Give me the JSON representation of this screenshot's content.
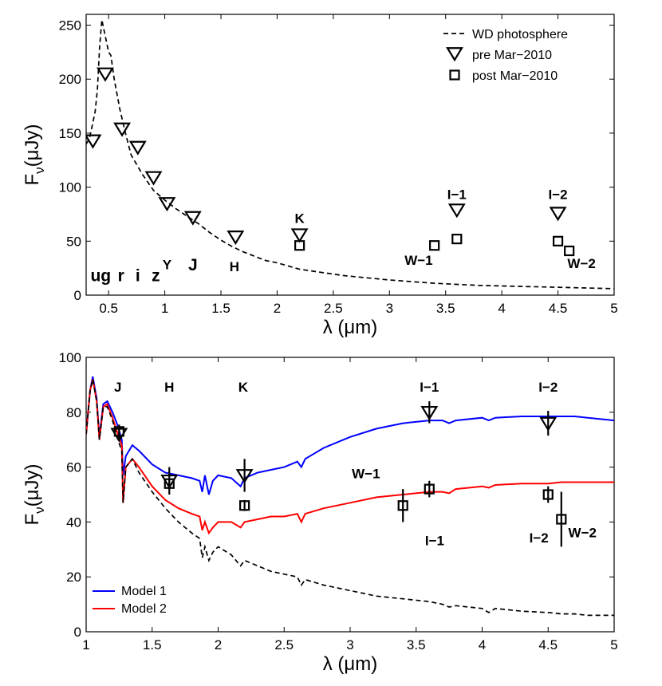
{
  "chart_data": [
    {
      "type": "scatter",
      "panel": "top",
      "xlabel": "λ (μm)",
      "ylabel_main": "F",
      "ylabel_sub": "ν",
      "ylabel_unit": "(μJy)",
      "xlim": [
        0.3,
        5
      ],
      "ylim": [
        0,
        260
      ],
      "xticks": [
        0.5,
        1,
        1.5,
        2,
        2.5,
        3,
        3.5,
        4,
        4.5,
        5
      ],
      "xticklabels": [
        "0.5",
        "1",
        "1.5",
        "2",
        "2.5",
        "3",
        "3.5",
        "4",
        "4.5",
        "5"
      ],
      "yticks": [
        0,
        50,
        100,
        150,
        200,
        250
      ],
      "yticklabels": [
        "0",
        "50",
        "100",
        "150",
        "200",
        "250"
      ],
      "legend": {
        "placement": "top-right",
        "entries": [
          {
            "label": "WD photosphere",
            "style": "dashed-line"
          },
          {
            "label": "pre Mar−2010",
            "marker": "triangle-down"
          },
          {
            "label": "post Mar−2010",
            "marker": "square"
          }
        ]
      },
      "series": [
        {
          "name": "WD photosphere",
          "style": "dashed",
          "x": [
            0.3,
            0.33,
            0.36,
            0.38,
            0.4,
            0.42,
            0.44,
            0.46,
            0.48,
            0.5,
            0.52,
            0.55,
            0.6,
            0.65,
            0.7,
            0.8,
            0.9,
            1.0,
            1.1,
            1.2,
            1.3,
            1.4,
            1.5,
            1.6,
            1.7,
            1.8,
            1.9,
            2.0,
            2.2,
            2.4,
            2.6,
            2.8,
            3.0,
            3.2,
            3.4,
            3.6,
            3.8,
            4.0,
            4.2,
            4.4,
            4.6,
            4.8,
            5.0
          ],
          "y": [
            140,
            145,
            160,
            170,
            190,
            230,
            255,
            245,
            235,
            225,
            222,
            200,
            172,
            150,
            130,
            112,
            97,
            88,
            80,
            73,
            66,
            58,
            51,
            45,
            40,
            36,
            32,
            30,
            24,
            21,
            18,
            16,
            14,
            12.5,
            11,
            10,
            9,
            8.5,
            8,
            7.5,
            7,
            6.5,
            6
          ]
        },
        {
          "name": "pre Mar−2010",
          "marker": "triangle-down",
          "x": [
            0.36,
            0.47,
            0.62,
            0.76,
            0.9,
            1.02,
            1.25,
            1.63,
            2.2,
            3.6,
            4.5
          ],
          "y": [
            143,
            205,
            154,
            137,
            109,
            85,
            72,
            54,
            56,
            79,
            76
          ]
        },
        {
          "name": "post Mar−2010",
          "marker": "square",
          "x": [
            2.2,
            3.4,
            3.6,
            4.5,
            4.6
          ],
          "y": [
            46,
            46,
            52,
            50,
            41
          ]
        }
      ],
      "annotations": [
        {
          "text": "ug",
          "x": 0.43,
          "y": 13,
          "size": "big"
        },
        {
          "text": "r",
          "x": 0.61,
          "y": 13,
          "size": "big"
        },
        {
          "text": "i",
          "x": 0.76,
          "y": 13,
          "size": "big"
        },
        {
          "text": "z",
          "x": 0.92,
          "y": 13,
          "size": "big"
        },
        {
          "text": "Y",
          "x": 1.02,
          "y": 24,
          "size": "small"
        },
        {
          "text": "J",
          "x": 1.25,
          "y": 23,
          "size": "big"
        },
        {
          "text": "H",
          "x": 1.62,
          "y": 22,
          "size": "small"
        },
        {
          "text": "K",
          "x": 2.2,
          "y": 67,
          "size": "small"
        },
        {
          "text": "W−1",
          "x": 3.26,
          "y": 28,
          "size": "small"
        },
        {
          "text": "I−1",
          "x": 3.6,
          "y": 89,
          "size": "small"
        },
        {
          "text": "I−2",
          "x": 4.5,
          "y": 89,
          "size": "small"
        },
        {
          "text": "W−2",
          "x": 4.71,
          "y": 25,
          "size": "small"
        }
      ]
    },
    {
      "type": "line",
      "panel": "bottom",
      "xlabel": "λ (μm)",
      "ylabel_main": "F",
      "ylabel_sub": "ν",
      "ylabel_unit": "(μJy)",
      "xlim": [
        1,
        5
      ],
      "ylim": [
        0,
        100
      ],
      "xticks": [
        1,
        1.5,
        2,
        2.5,
        3,
        3.5,
        4,
        4.5,
        5
      ],
      "xticklabels": [
        "1",
        "1.5",
        "2",
        "2.5",
        "3",
        "3.5",
        "4",
        "4.5",
        "5"
      ],
      "yticks": [
        0,
        20,
        40,
        60,
        80,
        100
      ],
      "yticklabels": [
        "0",
        "20",
        "40",
        "60",
        "80",
        "100"
      ],
      "legend": {
        "placement": "bottom-left",
        "entries": [
          {
            "label": "Model 1",
            "color": "#0000ff"
          },
          {
            "label": "Model 2",
            "color": "#ff0000"
          }
        ]
      },
      "series": [
        {
          "name": "Model 1",
          "color": "#0000ff",
          "style": "solid",
          "x": [
            1.0,
            1.03,
            1.05,
            1.08,
            1.1,
            1.13,
            1.16,
            1.2,
            1.24,
            1.27,
            1.28,
            1.3,
            1.35,
            1.4,
            1.5,
            1.6,
            1.7,
            1.8,
            1.86,
            1.88,
            1.9,
            1.93,
            1.96,
            2.0,
            2.1,
            2.17,
            2.2,
            2.3,
            2.4,
            2.5,
            2.6,
            2.63,
            2.66,
            2.8,
            3.0,
            3.2,
            3.4,
            3.6,
            3.7,
            3.75,
            3.8,
            4.0,
            4.05,
            4.1,
            4.3,
            4.5,
            4.6,
            4.7,
            4.8,
            5.0
          ],
          "y": [
            72,
            88,
            93,
            85,
            71,
            83,
            84,
            80,
            75,
            70,
            57,
            64,
            68,
            66,
            61,
            58,
            57,
            56,
            55,
            51,
            57,
            50,
            55,
            57,
            56,
            53,
            56,
            58,
            59,
            60,
            62,
            60,
            63,
            67,
            71,
            74,
            76,
            77,
            77,
            76,
            77,
            78,
            77,
            78,
            78.5,
            78.5,
            78.5,
            78.5,
            78,
            77
          ]
        },
        {
          "name": "Model 2",
          "color": "#ff0000",
          "style": "solid",
          "x": [
            1.0,
            1.03,
            1.05,
            1.08,
            1.1,
            1.13,
            1.16,
            1.2,
            1.24,
            1.27,
            1.28,
            1.3,
            1.35,
            1.4,
            1.5,
            1.6,
            1.7,
            1.8,
            1.86,
            1.88,
            1.9,
            1.93,
            1.96,
            2.0,
            2.1,
            2.17,
            2.2,
            2.3,
            2.4,
            2.5,
            2.6,
            2.63,
            2.66,
            2.8,
            3.0,
            3.2,
            3.4,
            3.6,
            3.7,
            3.75,
            3.8,
            4.0,
            4.05,
            4.1,
            4.3,
            4.5,
            4.6,
            4.7,
            4.8,
            5.0
          ],
          "y": [
            72,
            88,
            92,
            84,
            70,
            82,
            83,
            78,
            72,
            68,
            47,
            60,
            63,
            60,
            53,
            48,
            45,
            43,
            42,
            37,
            40,
            36,
            38,
            40,
            40,
            38,
            40,
            41,
            42,
            42,
            43,
            40,
            43,
            45,
            47,
            49,
            50,
            51,
            51,
            50.5,
            52,
            53,
            52.5,
            53.5,
            54,
            54,
            54.5,
            54.5,
            54.5,
            54.5
          ]
        },
        {
          "name": "WD photosphere",
          "color": "#000000",
          "style": "dashed",
          "x": [
            1.0,
            1.03,
            1.05,
            1.08,
            1.1,
            1.13,
            1.16,
            1.2,
            1.24,
            1.27,
            1.28,
            1.3,
            1.35,
            1.4,
            1.5,
            1.6,
            1.7,
            1.8,
            1.86,
            1.88,
            1.9,
            1.93,
            1.96,
            2.0,
            2.1,
            2.17,
            2.2,
            2.3,
            2.4,
            2.5,
            2.6,
            2.63,
            2.66,
            2.8,
            3.0,
            3.2,
            3.4,
            3.6,
            3.7,
            3.75,
            3.8,
            4.0,
            4.05,
            4.1,
            4.3,
            4.5,
            4.6,
            4.7,
            4.8,
            5.0
          ],
          "y": [
            72,
            88,
            92,
            84,
            70,
            82,
            82,
            77,
            70,
            66,
            47,
            60,
            63,
            58,
            51,
            45,
            40,
            36,
            34,
            27,
            31,
            26,
            29,
            31,
            28,
            24,
            26,
            24,
            22,
            21,
            20,
            17,
            19,
            17,
            15,
            13,
            12,
            11,
            10,
            9,
            9.5,
            8.5,
            7,
            8.5,
            7.5,
            7,
            6.5,
            6.5,
            6,
            6
          ]
        },
        {
          "name": "pre Mar−2010",
          "marker": "triangle-down",
          "x": [
            1.25,
            1.63,
            2.2,
            3.6,
            4.5
          ],
          "y": [
            72,
            55,
            57,
            80,
            76
          ],
          "err": [
            2.5,
            5,
            6,
            4,
            4.5
          ]
        },
        {
          "name": "post Mar−2010",
          "marker": "square",
          "x": [
            1.25,
            1.63,
            2.2,
            3.4,
            3.6,
            4.5,
            4.6
          ],
          "y": [
            73,
            54,
            46,
            46,
            52,
            50,
            41
          ],
          "err": [
            2.5,
            2,
            2,
            6,
            3,
            3,
            10
          ]
        }
      ],
      "annotations": [
        {
          "text": "J",
          "x": 1.24,
          "y": 87.5
        },
        {
          "text": "H",
          "x": 1.63,
          "y": 87.5
        },
        {
          "text": "K",
          "x": 2.19,
          "y": 87.5
        },
        {
          "text": "I−1",
          "x": 3.6,
          "y": 87.5
        },
        {
          "text": "I−2",
          "x": 4.5,
          "y": 87.5
        },
        {
          "text": "W−1",
          "x": 3.12,
          "y": 56
        },
        {
          "text": "I−1",
          "x": 3.64,
          "y": 31.5
        },
        {
          "text": "I−2",
          "x": 4.43,
          "y": 32.5
        },
        {
          "text": "W−2",
          "x": 4.76,
          "y": 34.5
        }
      ]
    }
  ]
}
